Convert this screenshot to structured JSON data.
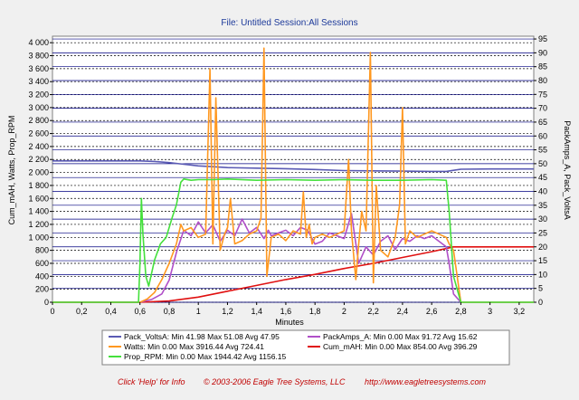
{
  "chart_data": {
    "type": "line",
    "title": "File: Untitled   Session:All Sessions",
    "xlabel": "Minutes",
    "ylabel_left": "Cum_mAH, Watts, Prop_RPM",
    "ylabel_right": "PackAmps_A, Pack_VoltsA",
    "xlim": [
      0,
      3.3
    ],
    "ylim_left": [
      0,
      4100
    ],
    "ylim_right": [
      0,
      96
    ],
    "x_ticks": [
      "0",
      "0,2",
      "0,4",
      "0,6",
      "0,8",
      "1",
      "1,2",
      "1,4",
      "1,6",
      "1,8",
      "2",
      "2,2",
      "2,4",
      "2,6",
      "2,8",
      "3",
      "3,2"
    ],
    "x_tick_values": [
      0,
      0.2,
      0.4,
      0.6,
      0.8,
      1.0,
      1.2,
      1.4,
      1.6,
      1.8,
      2.0,
      2.2,
      2.4,
      2.6,
      2.8,
      3.0,
      3.2
    ],
    "y_ticks_left": [
      "0",
      "200",
      "400",
      "600",
      "800",
      "1 000",
      "1 200",
      "1 400",
      "1 600",
      "1 800",
      "2 000",
      "2 200",
      "2 400",
      "2 600",
      "2 800",
      "3 000",
      "3 200",
      "3 400",
      "3 600",
      "3 800",
      "4 000"
    ],
    "y_tick_values_left": [
      0,
      200,
      400,
      600,
      800,
      1000,
      1200,
      1400,
      1600,
      1800,
      2000,
      2200,
      2400,
      2600,
      2800,
      3000,
      3200,
      3400,
      3600,
      3800,
      4000
    ],
    "y_ticks_right": [
      "0",
      "5",
      "10",
      "15",
      "20",
      "25",
      "30",
      "35",
      "40",
      "45",
      "50",
      "55",
      "60",
      "65",
      "70",
      "75",
      "80",
      "85",
      "90",
      "95"
    ],
    "y_tick_values_right": [
      0,
      5,
      10,
      15,
      20,
      25,
      30,
      35,
      40,
      45,
      50,
      55,
      60,
      65,
      70,
      75,
      80,
      85,
      90,
      95
    ],
    "grid": true,
    "legend_placement": "bottom",
    "series": [
      {
        "name": "Pack_VoltsA",
        "legend": "Pack_VoltsA:  Min 41.98 Max 51.08 Avg 47.95",
        "axis": "right",
        "color": "#5a5ab4",
        "x": [
          0,
          0.2,
          0.4,
          0.6,
          0.7,
          0.8,
          0.9,
          1.0,
          1.1,
          1.2,
          1.4,
          1.6,
          1.8,
          2.0,
          2.2,
          2.4,
          2.6,
          2.7,
          2.75,
          2.8,
          3.0,
          3.3
        ],
        "y": [
          51.0,
          51.0,
          51.0,
          51.0,
          50.8,
          50.4,
          49.8,
          49.2,
          48.9,
          48.6,
          48.4,
          48.2,
          47.9,
          47.5,
          47.4,
          47.3,
          47.2,
          47.2,
          47.6,
          48.0,
          48.1,
          48.1
        ]
      },
      {
        "name": "PackAmps_A",
        "legend": "PackAmps_A:  Min 0.00 Max 91.72 Avg 15.62",
        "axis": "right",
        "color": "#b04fc8",
        "x": [
          0,
          0.6,
          0.68,
          0.75,
          0.8,
          0.85,
          0.9,
          0.95,
          1.0,
          1.05,
          1.1,
          1.15,
          1.2,
          1.25,
          1.3,
          1.35,
          1.4,
          1.45,
          1.48,
          1.5,
          1.55,
          1.6,
          1.65,
          1.7,
          1.75,
          1.8,
          1.85,
          1.9,
          1.95,
          2.0,
          2.05,
          2.1,
          2.15,
          2.2,
          2.25,
          2.3,
          2.35,
          2.4,
          2.45,
          2.5,
          2.55,
          2.6,
          2.65,
          2.7,
          2.72,
          2.75,
          2.8,
          3.3
        ],
        "y": [
          0,
          0,
          1,
          3,
          8,
          18,
          26,
          24,
          29,
          25,
          28,
          22,
          26,
          24,
          30,
          25,
          27,
          23,
          26,
          24,
          25,
          26,
          24,
          27,
          26,
          21,
          22,
          25,
          24,
          23,
          32,
          14,
          20,
          17,
          22,
          24,
          19,
          23,
          22,
          24,
          23,
          24,
          22,
          20,
          14,
          3,
          0,
          0
        ]
      },
      {
        "name": "Watts",
        "legend": "Watts:  Min 0.00 Max 3916.44 Avg 724.41",
        "axis": "left",
        "color": "#ff9820",
        "x": [
          0,
          0.6,
          0.65,
          0.7,
          0.75,
          0.8,
          0.85,
          0.88,
          0.9,
          0.95,
          1.0,
          1.05,
          1.08,
          1.1,
          1.12,
          1.15,
          1.18,
          1.2,
          1.22,
          1.25,
          1.3,
          1.35,
          1.4,
          1.43,
          1.45,
          1.47,
          1.5,
          1.55,
          1.6,
          1.65,
          1.7,
          1.72,
          1.74,
          1.76,
          1.78,
          1.8,
          1.85,
          1.9,
          1.95,
          2.0,
          2.03,
          2.05,
          2.08,
          2.1,
          2.12,
          2.15,
          2.18,
          2.2,
          2.22,
          2.25,
          2.3,
          2.35,
          2.38,
          2.4,
          2.42,
          2.45,
          2.5,
          2.55,
          2.6,
          2.65,
          2.7,
          2.72,
          2.75,
          2.8,
          3.3
        ],
        "y": [
          0,
          0,
          50,
          150,
          350,
          600,
          900,
          1200,
          1100,
          1150,
          1000,
          1050,
          3600,
          900,
          3150,
          800,
          1050,
          1150,
          1600,
          900,
          950,
          1050,
          1100,
          1300,
          3916,
          400,
          1000,
          1050,
          950,
          1100,
          1050,
          1700,
          1000,
          1200,
          900,
          1000,
          1050,
          1000,
          1050,
          1100,
          2200,
          1100,
          350,
          900,
          1400,
          1100,
          3850,
          300,
          1800,
          800,
          700,
          1000,
          1500,
          3000,
          900,
          1100,
          1000,
          1050,
          1100,
          1050,
          1000,
          900,
          800,
          0,
          0
        ]
      },
      {
        "name": "Cum_mAH",
        "legend": "Cum_mAH:  Min 0.00 Max 854.00 Avg 396.29",
        "axis": "left",
        "color": "#e01010",
        "x": [
          0,
          0.6,
          0.8,
          1.0,
          1.2,
          1.4,
          1.6,
          1.8,
          2.0,
          2.2,
          2.4,
          2.6,
          2.75,
          3.3
        ],
        "y": [
          0,
          0,
          20,
          80,
          170,
          260,
          350,
          430,
          520,
          600,
          690,
          780,
          854,
          854
        ]
      },
      {
        "name": "Prop_RPM",
        "legend": "Prop_RPM:  Min 0.00 Max 1944.42 Avg 1156.15",
        "axis": "left",
        "color": "#44e03c",
        "x": [
          0,
          0.59,
          0.6,
          0.61,
          0.62,
          0.64,
          0.66,
          0.7,
          0.74,
          0.78,
          0.82,
          0.85,
          0.88,
          0.9,
          0.95,
          1.0,
          1.1,
          1.2,
          1.4,
          1.6,
          1.8,
          2.0,
          2.2,
          2.4,
          2.6,
          2.7,
          2.72,
          2.75,
          2.8,
          3.3
        ],
        "y": [
          0,
          0,
          600,
          1600,
          1050,
          400,
          250,
          650,
          900,
          1000,
          1300,
          1500,
          1850,
          1900,
          1880,
          1890,
          1890,
          1900,
          1880,
          1890,
          1880,
          1890,
          1880,
          1880,
          1890,
          1880,
          1400,
          400,
          0,
          0
        ]
      }
    ]
  },
  "footer": {
    "help": "Click 'Help' for Info",
    "copyright": "© 2003-2006 Eagle Tree Systems, LLC",
    "url": "http://www.eagletreesystems.com"
  }
}
